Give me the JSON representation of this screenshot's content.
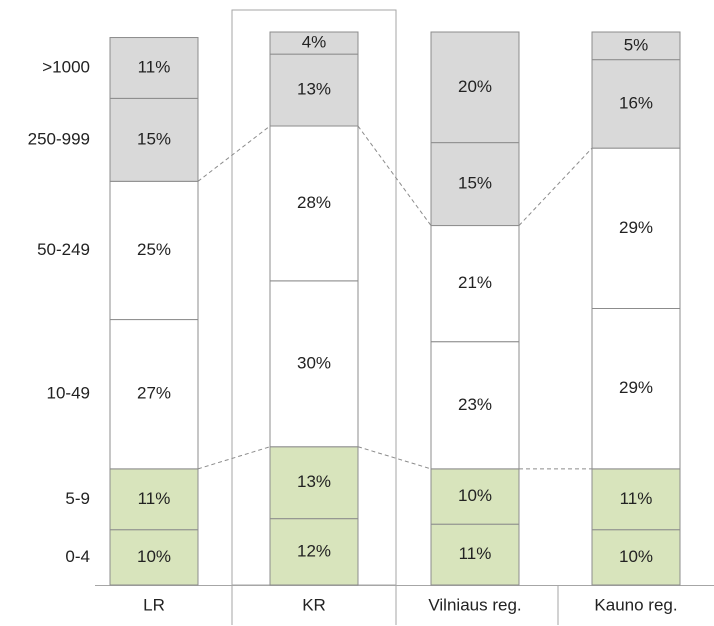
{
  "chart_data": {
    "type": "stacked_bar",
    "categories": [
      "LR",
      "KR",
      "Vilniaus reg.",
      "Kauno reg."
    ],
    "series": [
      {
        "name": "0-4",
        "color": "#d8e4bc",
        "values": [
          10,
          12,
          11,
          10
        ],
        "value_labels": [
          "10%",
          "12%",
          "11%",
          "10%"
        ]
      },
      {
        "name": "5-9",
        "color": "#d8e4bc",
        "values": [
          11,
          13,
          10,
          11
        ],
        "value_labels": [
          "11%",
          "13%",
          "10%",
          "11%"
        ]
      },
      {
        "name": "10-49",
        "color": "#ffffff",
        "values": [
          27,
          30,
          23,
          29
        ],
        "value_labels": [
          "27%",
          "30%",
          "23%",
          "29%"
        ]
      },
      {
        "name": "50-249",
        "color": "#ffffff",
        "values": [
          25,
          28,
          21,
          29
        ],
        "value_labels": [
          "25%",
          "28%",
          "21%",
          "29%"
        ]
      },
      {
        "name": "250-999",
        "color": "#d9d9d9",
        "values": [
          15,
          13,
          15,
          16
        ],
        "value_labels": [
          "15%",
          "13%",
          "15%",
          "16%"
        ]
      },
      {
        "name": ">1000",
        "color": "#d9d9d9",
        "values": [
          11,
          4,
          20,
          5
        ],
        "value_labels": [
          "11%",
          "4%",
          "20%",
          "5%"
        ]
      }
    ]
  }
}
